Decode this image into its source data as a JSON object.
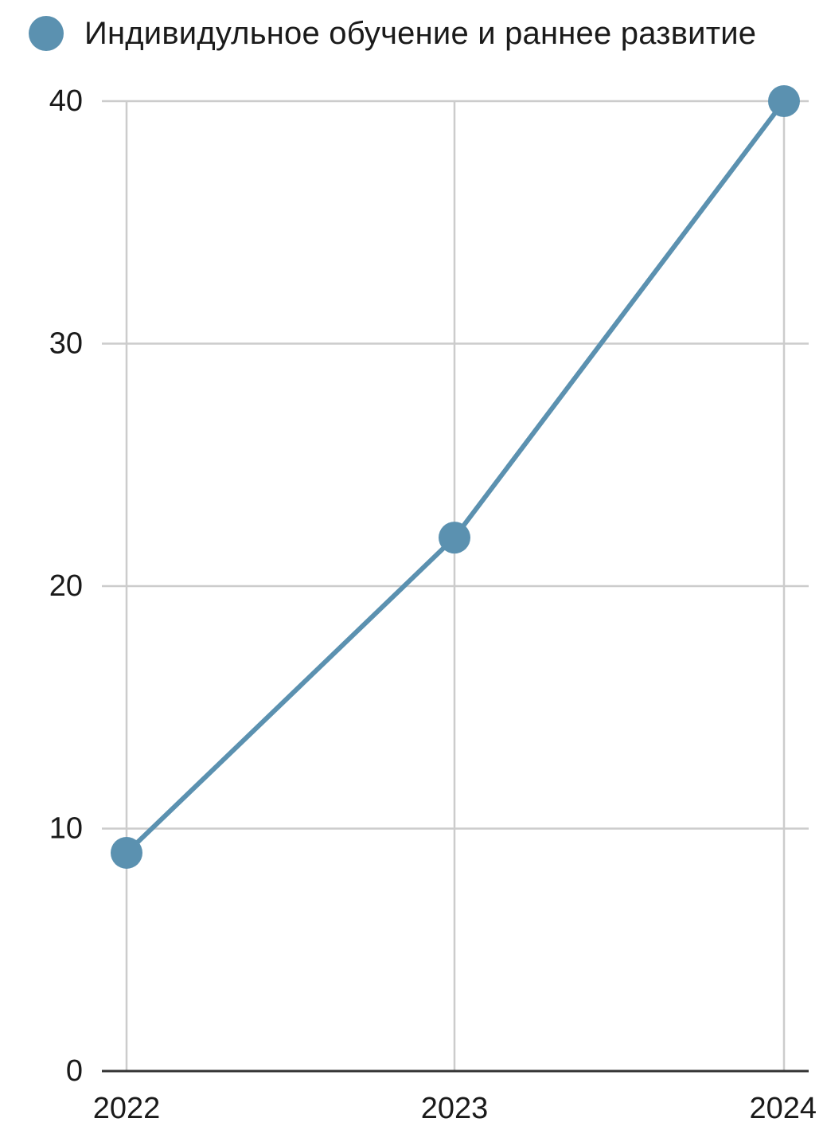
{
  "chart_data": {
    "type": "line",
    "x": [
      "2022",
      "2023",
      "2024"
    ],
    "series": [
      {
        "name": "Индивидульное обучение и раннее развитие",
        "values": [
          9,
          22,
          40
        ],
        "color": "#5b91b0"
      }
    ],
    "yticks": [
      "0",
      "10",
      "20",
      "30",
      "40"
    ],
    "ylim": [
      0,
      40
    ],
    "grid": true,
    "legend": "top-left",
    "title": "",
    "xlabel": "",
    "ylabel": ""
  }
}
